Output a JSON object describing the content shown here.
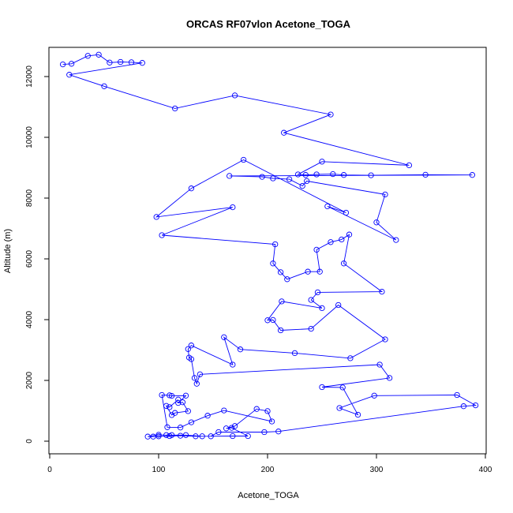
{
  "chart_data": {
    "type": "line",
    "title": "ORCAS RF07vlon Acetone_TOGA",
    "xlabel": "Acetone_TOGA",
    "ylabel": "Altitude (m)",
    "xlim": [
      0,
      400
    ],
    "ylim": [
      0,
      13000
    ],
    "xticks": [
      0,
      100,
      200,
      300,
      400
    ],
    "yticks": [
      0,
      2000,
      4000,
      6000,
      8000,
      10000,
      12000
    ],
    "grid": false,
    "legend": "none",
    "series_color": "#0000ff",
    "series": [
      {
        "markers": "open-circle",
        "points": [
          [
            12,
            12400
          ],
          [
            20,
            12420
          ],
          [
            35,
            12680
          ],
          [
            45,
            12720
          ],
          [
            55,
            12460
          ],
          [
            65,
            12480
          ],
          [
            75,
            12470
          ],
          [
            85,
            12450
          ],
          [
            18,
            12060
          ],
          [
            50,
            11680
          ],
          [
            115,
            10950
          ],
          [
            170,
            11380
          ],
          [
            258,
            10750
          ],
          [
            215,
            10150
          ],
          [
            330,
            9080
          ],
          [
            250,
            9200
          ],
          [
            228,
            8780
          ],
          [
            235,
            8760
          ],
          [
            245,
            8780
          ],
          [
            260,
            8790
          ],
          [
            270,
            8760
          ],
          [
            295,
            8750
          ],
          [
            345,
            8770
          ],
          [
            388,
            8760
          ],
          [
            165,
            8730
          ],
          [
            195,
            8700
          ],
          [
            205,
            8650
          ],
          [
            220,
            8620
          ],
          [
            232,
            8400
          ],
          [
            236,
            8560
          ],
          [
            308,
            8120
          ],
          [
            300,
            7200
          ],
          [
            318,
            6620
          ],
          [
            255,
            7730
          ],
          [
            272,
            7520
          ],
          [
            178,
            9260
          ],
          [
            130,
            8320
          ],
          [
            98,
            7380
          ],
          [
            168,
            7700
          ],
          [
            103,
            6780
          ],
          [
            207,
            6480
          ],
          [
            205,
            5850
          ],
          [
            212,
            5560
          ],
          [
            218,
            5330
          ],
          [
            237,
            5580
          ],
          [
            248,
            5580
          ],
          [
            245,
            6300
          ],
          [
            258,
            6550
          ],
          [
            268,
            6640
          ],
          [
            275,
            6800
          ],
          [
            270,
            5850
          ],
          [
            305,
            4920
          ],
          [
            246,
            4900
          ],
          [
            240,
            4650
          ],
          [
            250,
            4380
          ],
          [
            213,
            4600
          ],
          [
            200,
            3980
          ],
          [
            205,
            3990
          ],
          [
            212,
            3650
          ],
          [
            240,
            3700
          ],
          [
            265,
            4480
          ],
          [
            308,
            3350
          ],
          [
            276,
            2730
          ],
          [
            225,
            2900
          ],
          [
            175,
            3020
          ],
          [
            160,
            3420
          ],
          [
            168,
            2520
          ],
          [
            130,
            3150
          ],
          [
            127,
            3030
          ],
          [
            128,
            2750
          ],
          [
            130,
            2700
          ],
          [
            133,
            2080
          ],
          [
            135,
            1890
          ],
          [
            138,
            2200
          ],
          [
            303,
            2520
          ],
          [
            312,
            2080
          ],
          [
            250,
            1780
          ],
          [
            269,
            1770
          ],
          [
            283,
            870
          ],
          [
            266,
            1090
          ],
          [
            298,
            1500
          ],
          [
            374,
            1520
          ],
          [
            391,
            1180
          ],
          [
            380,
            1150
          ],
          [
            210,
            320
          ],
          [
            197,
            300
          ],
          [
            155,
            300
          ],
          [
            148,
            160
          ],
          [
            134,
            160
          ],
          [
            120,
            180
          ],
          [
            110,
            170
          ],
          [
            100,
            160
          ],
          [
            95,
            150
          ],
          [
            90,
            150
          ],
          [
            100,
            210
          ],
          [
            107,
            200
          ],
          [
            112,
            200
          ],
          [
            125,
            200
          ],
          [
            140,
            160
          ],
          [
            168,
            170
          ],
          [
            182,
            170
          ],
          [
            167,
            440
          ],
          [
            162,
            420
          ],
          [
            170,
            500
          ],
          [
            190,
            1060
          ],
          [
            200,
            990
          ],
          [
            204,
            650
          ],
          [
            160,
            1010
          ],
          [
            145,
            840
          ],
          [
            130,
            620
          ],
          [
            120,
            450
          ],
          [
            108,
            460
          ],
          [
            103,
            1520
          ],
          [
            110,
            1510
          ],
          [
            112,
            1490
          ],
          [
            125,
            1500
          ],
          [
            118,
            1260
          ],
          [
            122,
            1280
          ],
          [
            127,
            990
          ],
          [
            115,
            930
          ],
          [
            112,
            860
          ],
          [
            107,
            1160
          ],
          [
            110,
            1120
          ],
          [
            118,
            1370
          ]
        ]
      }
    ]
  }
}
